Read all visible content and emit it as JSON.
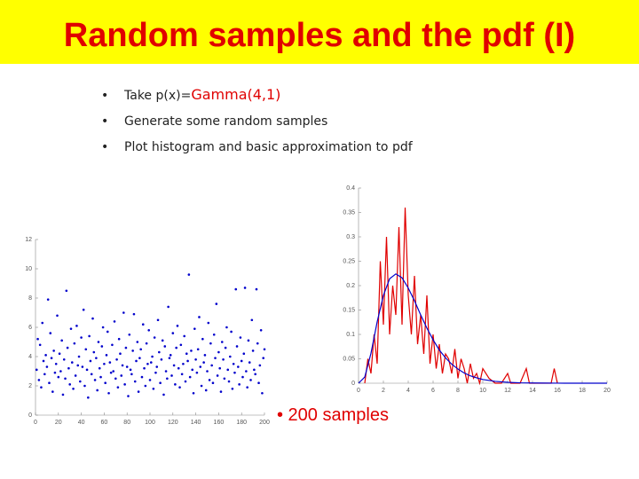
{
  "title": "Random samples and the pdf (I)",
  "bullets": [
    {
      "text": "Take p(x)=",
      "highlight": "Gamma(4,1)"
    },
    {
      "text": "Generate some random samples"
    },
    {
      "text": "Plot histogram and basic approximation to pdf"
    }
  ],
  "note": "• 200 samples",
  "chart_data": [
    {
      "type": "scatter",
      "color": "#0000cc",
      "xlim": [
        0,
        200
      ],
      "xticks": [
        0,
        20,
        40,
        60,
        80,
        100,
        120,
        140,
        160,
        180,
        200
      ],
      "ylim": [
        0,
        12
      ],
      "yticks": [
        0,
        2,
        4,
        6,
        8,
        10,
        12
      ],
      "series": [
        {
          "color": "#0000cc",
          "x": [
            1,
            2,
            3,
            4,
            5,
            6,
            7,
            8,
            9,
            10,
            11,
            12,
            13,
            14,
            15,
            16,
            17,
            18,
            19,
            20,
            21,
            22,
            23,
            24,
            25,
            26,
            27,
            28,
            29,
            30,
            31,
            32,
            33,
            34,
            35,
            36,
            37,
            38,
            39,
            40,
            41,
            42,
            43,
            44,
            45,
            46,
            47,
            48,
            49,
            50,
            51,
            52,
            53,
            54,
            55,
            56,
            57,
            58,
            59,
            60,
            61,
            62,
            63,
            64,
            65,
            66,
            67,
            68,
            69,
            70,
            71,
            72,
            73,
            74,
            75,
            76,
            77,
            78,
            79,
            80,
            81,
            82,
            83,
            84,
            85,
            86,
            87,
            88,
            89,
            90,
            91,
            92,
            93,
            94,
            95,
            96,
            97,
            98,
            99,
            100,
            101,
            102,
            103,
            104,
            105,
            106,
            107,
            108,
            109,
            110,
            111,
            112,
            113,
            114,
            115,
            116,
            117,
            118,
            119,
            120,
            121,
            122,
            123,
            124,
            125,
            126,
            127,
            128,
            129,
            130,
            131,
            132,
            133,
            134,
            135,
            136,
            137,
            138,
            139,
            140,
            141,
            142,
            143,
            144,
            145,
            146,
            147,
            148,
            149,
            150,
            151,
            152,
            153,
            154,
            155,
            156,
            157,
            158,
            159,
            160,
            161,
            162,
            163,
            164,
            165,
            166,
            167,
            168,
            169,
            170,
            171,
            172,
            173,
            174,
            175,
            176,
            177,
            178,
            179,
            180,
            181,
            182,
            183,
            184,
            185,
            186,
            187,
            188,
            189,
            190,
            191,
            192,
            193,
            194,
            195,
            196,
            197,
            198,
            199,
            200
          ],
          "values": [
            3.1,
            5.2,
            2.4,
            4.8,
            1.9,
            6.3,
            3.7,
            2.8,
            4.1,
            3.3,
            7.9,
            2.2,
            5.6,
            3.9,
            1.6,
            4.4,
            2.9,
            3.5,
            6.8,
            2.6,
            4.2,
            3.0,
            5.1,
            1.4,
            3.8,
            2.5,
            8.5,
            4.6,
            3.2,
            2.1,
            5.9,
            3.6,
            1.8,
            4.9,
            2.7,
            6.1,
            3.4,
            4.0,
            2.3,
            5.3,
            3.3,
            7.2,
            2.0,
            4.5,
            3.1,
            1.2,
            5.4,
            3.7,
            2.8,
            6.6,
            4.3,
            2.4,
            3.9,
            1.7,
            5.0,
            3.2,
            2.6,
            4.7,
            6.0,
            3.5,
            2.2,
            4.1,
            5.7,
            1.5,
            3.6,
            2.9,
            4.8,
            3.0,
            6.4,
            2.5,
            3.8,
            1.9,
            5.2,
            4.2,
            2.7,
            3.4,
            7.0,
            2.1,
            4.6,
            3.3,
            1.3,
            5.5,
            3.1,
            2.8,
            4.4,
            6.9,
            2.3,
            3.7,
            5.0,
            1.6,
            3.9,
            4.5,
            2.6,
            6.2,
            3.2,
            2.0,
            4.9,
            3.5,
            5.8,
            2.4,
            3.6,
            4.0,
            1.8,
            5.3,
            2.9,
            3.3,
            6.5,
            4.3,
            2.2,
            3.8,
            5.1,
            1.4,
            4.7,
            3.0,
            2.5,
            7.4,
            3.9,
            4.1,
            2.7,
            5.6,
            3.4,
            2.1,
            4.6,
            6.1,
            3.2,
            1.9,
            4.8,
            2.8,
            3.5,
            5.4,
            2.3,
            4.2,
            3.7,
            9.6,
            2.6,
            4.4,
            3.1,
            1.5,
            5.9,
            3.8,
            2.9,
            4.5,
            6.7,
            3.3,
            2.0,
            5.2,
            3.6,
            4.1,
            1.7,
            3.0,
            6.3,
            2.4,
            4.9,
            3.4,
            2.2,
            5.5,
            3.9,
            7.6,
            2.7,
            4.3,
            3.2,
            1.6,
            5.0,
            3.8,
            2.5,
            4.6,
            6.0,
            3.1,
            2.3,
            4.0,
            5.7,
            1.8,
            3.5,
            2.9,
            8.6,
            4.7,
            3.3,
            2.1,
            5.3,
            3.7,
            2.6,
            4.2,
            8.7,
            3.0,
            1.9,
            5.1,
            3.6,
            2.4,
            6.5,
            4.4,
            3.1,
            2.8,
            8.6,
            4.9,
            2.2,
            3.4,
            5.8,
            1.5,
            3.9,
            4.5
          ]
        }
      ]
    },
    {
      "type": "line",
      "xlim": [
        0,
        20
      ],
      "xticks": [
        0,
        2,
        4,
        6,
        8,
        10,
        12,
        14,
        16,
        18,
        20
      ],
      "ylim": [
        0,
        0.4
      ],
      "yticks": [
        0,
        0.05,
        0.1,
        0.15,
        0.2,
        0.25,
        0.3,
        0.35,
        0.4
      ],
      "series": [
        {
          "color": "#e00000",
          "x": [
            0.5,
            0.75,
            1,
            1.25,
            1.5,
            1.75,
            2,
            2.25,
            2.5,
            2.75,
            3,
            3.25,
            3.5,
            3.75,
            4,
            4.25,
            4.5,
            4.75,
            5,
            5.25,
            5.5,
            5.75,
            6,
            6.25,
            6.5,
            6.75,
            7,
            7.25,
            7.5,
            7.75,
            8,
            8.25,
            8.5,
            8.75,
            9,
            9.25,
            9.5,
            9.75,
            10,
            10.5,
            11,
            11.5,
            12,
            12.25,
            12.5,
            13,
            13.5,
            13.75,
            14,
            14.5,
            15,
            15.5,
            15.75,
            16
          ],
          "values": [
            0,
            0.05,
            0.02,
            0.1,
            0.04,
            0.25,
            0.12,
            0.3,
            0.1,
            0.2,
            0.14,
            0.32,
            0.12,
            0.36,
            0.18,
            0.1,
            0.22,
            0.08,
            0.14,
            0.06,
            0.18,
            0.04,
            0.1,
            0.03,
            0.08,
            0.02,
            0.06,
            0.05,
            0.02,
            0.07,
            0.01,
            0.05,
            0.03,
            0,
            0.04,
            0.01,
            0.02,
            0,
            0.03,
            0.01,
            0,
            0,
            0.02,
            0,
            0,
            0,
            0.03,
            0,
            0,
            0,
            0,
            0,
            0.03,
            0
          ]
        },
        {
          "color": "#0000cc",
          "x": [
            0,
            0.5,
            1,
            1.5,
            2,
            2.5,
            3,
            3.5,
            4,
            4.5,
            5,
            5.5,
            6,
            6.5,
            7,
            7.5,
            8,
            8.5,
            9,
            9.5,
            10,
            11,
            12,
            13,
            14,
            15,
            16,
            17,
            18,
            19,
            20
          ],
          "values": [
            0,
            0.0126,
            0.0613,
            0.126,
            0.18,
            0.214,
            0.224,
            0.216,
            0.195,
            0.169,
            0.14,
            0.113,
            0.089,
            0.068,
            0.052,
            0.039,
            0.029,
            0.021,
            0.015,
            0.011,
            0.0076,
            0.0037,
            0.0018,
            0.0008,
            0.0004,
            0.0002,
            0.0001,
            0,
            0,
            0,
            0
          ]
        }
      ]
    }
  ]
}
